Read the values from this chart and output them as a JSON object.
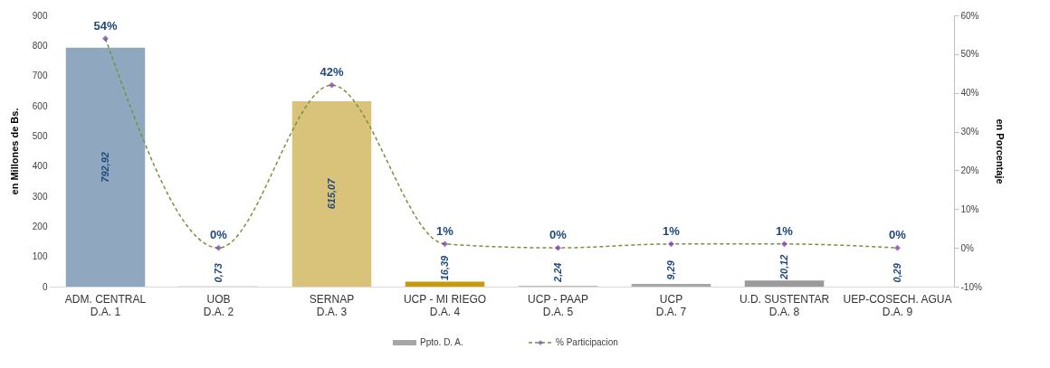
{
  "chart_data": {
    "type": "bar",
    "categories": [
      "ADM. CENTRAL\nD.A. 1",
      "UOB\nD.A. 2",
      "SERNAP\nD.A. 3",
      "UCP - MI RIEGO\nD.A. 4",
      "UCP - PAAP\nD.A. 5",
      "UCP\nD.A. 7",
      "U.D. SUSTENTAR\nD.A. 8",
      "UEP-COSECH. AGUA\nD.A. 9"
    ],
    "ylabel": "en Millones de Bs.",
    "y2label": "en Porcentaje",
    "ylim": [
      0,
      900
    ],
    "yticks": [
      0,
      100,
      200,
      300,
      400,
      500,
      600,
      700,
      800,
      900
    ],
    "y2lim": [
      -10,
      60
    ],
    "y2ticks": [
      {
        "value": -10,
        "label": "-10%"
      },
      {
        "value": 0,
        "label": "0%"
      },
      {
        "value": 10,
        "label": "10%"
      },
      {
        "value": 20,
        "label": "20%"
      },
      {
        "value": 30,
        "label": "30%"
      },
      {
        "value": 40,
        "label": "40%"
      },
      {
        "value": 50,
        "label": "50%"
      },
      {
        "value": 60,
        "label": "60%"
      }
    ],
    "legend": "bottom",
    "grid": false,
    "series": [
      {
        "name": "Ppto. D. A.",
        "color": "#a6a6a6",
        "colors": [
          "#8fa7bf",
          "#a6a6a6",
          "#d9c279",
          "#c99a0a",
          "#a6a6a6",
          "#a6a6a6",
          "#9a9a9a",
          "#a6a6a6"
        ],
        "values": [
          792.92,
          0.73,
          615.07,
          16.39,
          2.24,
          9.29,
          20.12,
          0.29
        ],
        "value_labels": [
          "792,92",
          "0,73",
          "615,07",
          "16,39",
          "2,24",
          "9,29",
          "20,12",
          "0,29"
        ]
      },
      {
        "name": "% Participacion",
        "type": "line",
        "axis": "y2",
        "color": "#77933c",
        "marker": "diamond",
        "line_style": "dashed",
        "values": [
          54,
          0,
          42,
          1,
          0,
          1,
          1,
          0
        ],
        "value_labels": [
          "54%",
          "0%",
          "42%",
          "1%",
          "0%",
          "1%",
          "1%",
          "0%"
        ]
      }
    ]
  }
}
